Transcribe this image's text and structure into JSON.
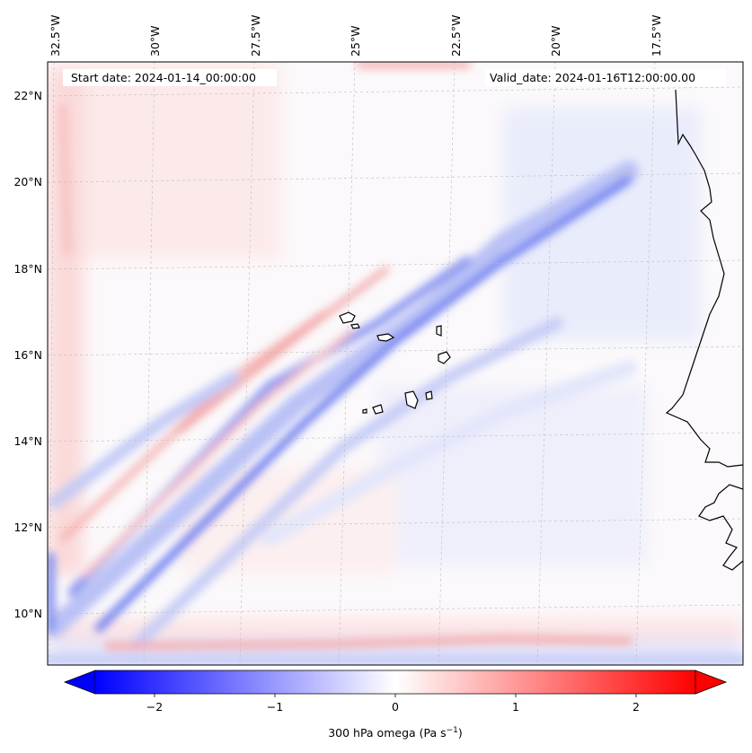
{
  "header": {
    "start_date": "Start date: 2024-01-14_00:00:00",
    "valid_date": "Valid_date: 2024-01-16T12:00:00.00"
  },
  "map": {
    "region": "Cabo Verde and the West African coast",
    "projection_grid": "dashed graticule",
    "lon_labels": [
      "32.5°W",
      "30°W",
      "27.5°W",
      "25°W",
      "22.5°W",
      "20°W",
      "17.5°W"
    ],
    "lat_labels": [
      "22°N",
      "20°N",
      "18°N",
      "16°N",
      "14°N",
      "12°N",
      "10°N"
    ],
    "field": "300 hPa vertical velocity (omega)"
  },
  "colorbar": {
    "label": "300 hPa omega (Pa s",
    "label_sup": "−1",
    "label_end": ")",
    "ticks": [
      "−2",
      "−1",
      "0",
      "1",
      "2"
    ],
    "min": -2.7,
    "max": 2.7,
    "low_color": "#0000ff",
    "mid_color": "#ffffff",
    "high_color": "#ff0000",
    "extend": "both"
  }
}
